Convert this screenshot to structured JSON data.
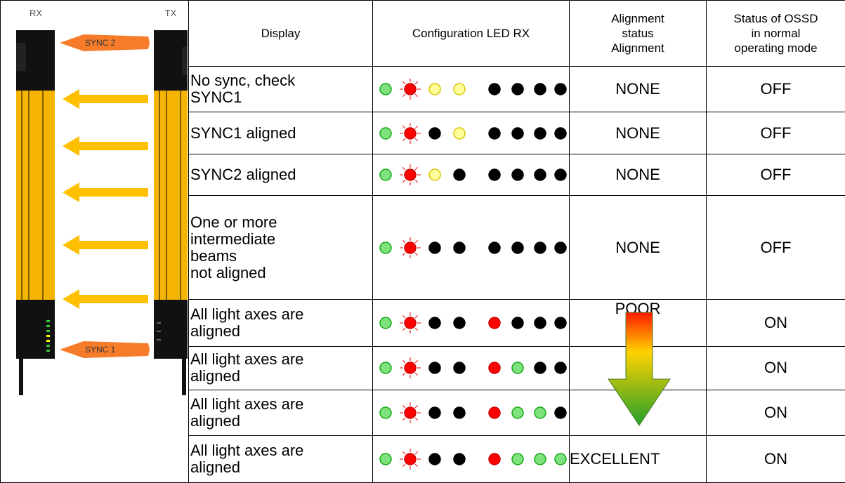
{
  "diagram": {
    "rx_label": "RX",
    "tx_label": "TX",
    "sync_top": "SYNC 2",
    "sync_bottom": "SYNC 1"
  },
  "table": {
    "headers": [
      "Display",
      "Configuration LED RX",
      "Alignment\nstatus\nAlignment",
      "Status of OSSD\nin normal\noperating mode"
    ],
    "rows": [
      {
        "display": "No sync, check\nSYNC1",
        "alignment": "NONE",
        "ossd": "OFF"
      },
      {
        "display": "SYNC1 aligned",
        "alignment": "NONE",
        "ossd": "OFF"
      },
      {
        "display": "SYNC2 aligned",
        "alignment": "NONE",
        "ossd": "OFF"
      },
      {
        "display": "One or more\nintermediate\nbeams\nnot aligned",
        "alignment": "NONE",
        "ossd": "OFF"
      },
      {
        "display": "All light axes are\naligned",
        "alignment": "POOR",
        "ossd": "ON"
      },
      {
        "display": "All light axes are\naligned",
        "ossd": "ON"
      },
      {
        "display": "All light axes are\naligned",
        "ossd": "ON"
      },
      {
        "display": "All light axes are\naligned",
        "alignment": "EXCELLENT",
        "ossd": "ON"
      }
    ]
  }
}
